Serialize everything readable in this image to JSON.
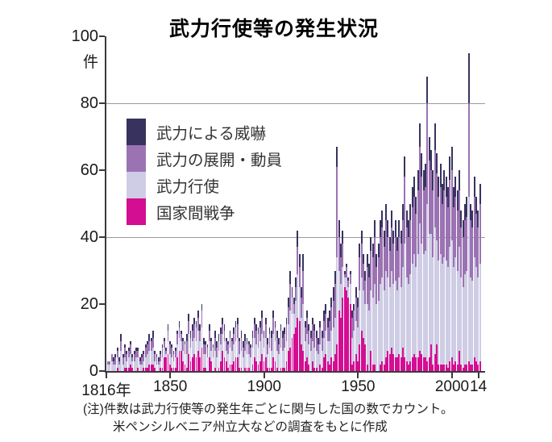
{
  "title": "武力行使等の発生状況",
  "y_axis": {
    "unit_label": "件",
    "tick_values": [
      100,
      80,
      60,
      40,
      20,
      0
    ],
    "tick_labels": [
      "100",
      "80",
      "60",
      "40",
      "20",
      "0"
    ]
  },
  "x_axis": {
    "ticks": [
      {
        "year": 1816,
        "label": "1816年"
      },
      {
        "year": 1850,
        "label": "1850"
      },
      {
        "year": 1900,
        "label": "1900"
      },
      {
        "year": 1950,
        "label": "1950"
      },
      {
        "year": 2000,
        "label": "2000"
      },
      {
        "year": 2014,
        "label": "14"
      }
    ]
  },
  "note": {
    "line1": "(注)件数は武力行使等の発生年ごとに関与した国の数でカウント。",
    "line2": "米ペンシルベニア州立大などの調査をもとに作成"
  },
  "colors": {
    "threat_navy": "#37335e",
    "deploy_purple": "#9b73b3",
    "force_lavender": "#cfcde5",
    "war_magenta": "#d30e92",
    "gridline": "#9b9b9b",
    "axis": "#3a3a3a"
  },
  "chart_data": {
    "type": "bar",
    "stacked": true,
    "title": "武力行使等の発生状況",
    "ylabel": "件",
    "ylim": [
      0,
      100
    ],
    "x_start": 1816,
    "x_end": 2014,
    "gridlines_y": [
      40,
      80
    ],
    "grid": "horizontal lines at 40 and 80 only",
    "legend_position": "upper-left",
    "legend_order_top_to_bottom": [
      "武力による威嚇",
      "武力の展開・動員",
      "武力行使",
      "国家間戦争"
    ],
    "series": [
      {
        "name": "国家間戦争",
        "color": "#d30e92",
        "values": [
          0,
          0,
          0,
          0,
          0,
          1,
          0,
          0,
          0,
          1,
          1,
          1,
          2,
          1,
          0,
          0,
          1,
          0,
          0,
          1,
          1,
          1,
          2,
          2,
          2,
          1,
          0,
          0,
          1,
          1,
          4,
          4,
          5,
          2,
          1,
          1,
          1,
          4,
          6,
          6,
          3,
          2,
          1,
          5,
          3,
          4,
          5,
          4,
          6,
          4,
          7,
          1,
          1,
          0,
          4,
          3,
          0,
          1,
          0,
          1,
          3,
          6,
          4,
          3,
          1,
          2,
          2,
          3,
          4,
          4,
          1,
          1,
          0,
          1,
          1,
          1,
          0,
          2,
          4,
          3,
          2,
          3,
          5,
          3,
          4,
          1,
          1,
          1,
          4,
          3,
          1,
          0,
          1,
          1,
          1,
          3,
          6,
          7,
          10,
          11,
          13,
          16,
          15,
          8,
          6,
          3,
          4,
          2,
          0,
          3,
          1,
          1,
          0,
          2,
          1,
          4,
          5,
          3,
          2,
          4,
          3,
          5,
          8,
          18,
          16,
          22,
          25,
          24,
          22,
          20,
          2,
          3,
          5,
          3,
          8,
          12,
          10,
          8,
          2,
          0,
          6,
          2,
          2,
          0,
          0,
          2,
          3,
          2,
          4,
          6,
          5,
          7,
          5,
          4,
          4,
          5,
          4,
          7,
          4,
          3,
          2,
          3,
          4,
          5,
          4,
          4,
          6,
          5,
          4,
          4,
          3,
          4,
          8,
          2,
          5,
          8,
          2,
          2,
          2,
          2,
          2,
          1,
          3,
          4,
          2,
          3,
          2,
          6,
          2,
          1,
          2,
          2,
          3,
          2,
          2,
          4,
          3,
          2,
          3
        ]
      },
      {
        "name": "武力行使",
        "color": "#cfcde5",
        "values": [
          2,
          2,
          3,
          2,
          2,
          3,
          2,
          6,
          2,
          3,
          2,
          3,
          3,
          2,
          3,
          4,
          3,
          2,
          2,
          2,
          3,
          4,
          4,
          4,
          5,
          2,
          2,
          2,
          2,
          3,
          3,
          1,
          4,
          3,
          3,
          2,
          3,
          4,
          4,
          3,
          3,
          3,
          4,
          6,
          4,
          5,
          5,
          5,
          6,
          5,
          6,
          4,
          4,
          4,
          5,
          3,
          4,
          5,
          4,
          5,
          5,
          5,
          5,
          3,
          4,
          5,
          4,
          5,
          5,
          6,
          4,
          5,
          4,
          5,
          4,
          4,
          4,
          5,
          6,
          5,
          5,
          6,
          6,
          4,
          6,
          4,
          6,
          5,
          7,
          6,
          5,
          5,
          6,
          5,
          6,
          6,
          8,
          11,
          7,
          6,
          8,
          13,
          10,
          8,
          14,
          6,
          7,
          6,
          6,
          6,
          6,
          5,
          5,
          6,
          5,
          6,
          7,
          6,
          7,
          8,
          10,
          11,
          26,
          12,
          10,
          9,
          3,
          4,
          3,
          6,
          8,
          9,
          10,
          10,
          16,
          16,
          14,
          12,
          18,
          18,
          18,
          20,
          24,
          20,
          21,
          24,
          25,
          22,
          26,
          22,
          20,
          23,
          21,
          23,
          20,
          23,
          21,
          24,
          34,
          25,
          24,
          26,
          28,
          30,
          27,
          31,
          38,
          33,
          31,
          32,
          47,
          37,
          33,
          32,
          38,
          31,
          31,
          33,
          30,
          32,
          31,
          30,
          34,
          35,
          29,
          31,
          28,
          31,
          26,
          24,
          27,
          28,
          49,
          26,
          25,
          30,
          28,
          26,
          29
        ]
      },
      {
        "name": "武力の展開・動員",
        "color": "#9b73b3",
        "values": [
          1,
          1,
          2,
          1,
          2,
          2,
          1,
          3,
          2,
          3,
          2,
          2,
          3,
          1,
          2,
          2,
          2,
          1,
          2,
          2,
          3,
          3,
          3,
          3,
          3,
          2,
          2,
          1,
          2,
          3,
          2,
          1,
          3,
          3,
          3,
          2,
          2,
          3,
          3,
          2,
          3,
          3,
          4,
          4,
          3,
          3,
          4,
          4,
          4,
          3,
          5,
          3,
          3,
          3,
          3,
          3,
          3,
          4,
          3,
          3,
          3,
          3,
          3,
          3,
          3,
          3,
          3,
          3,
          4,
          4,
          4,
          4,
          3,
          3,
          3,
          3,
          3,
          3,
          4,
          4,
          4,
          4,
          5,
          3,
          4,
          3,
          4,
          4,
          5,
          4,
          4,
          3,
          5,
          4,
          4,
          5,
          5,
          8,
          5,
          3,
          4,
          8,
          6,
          6,
          10,
          4,
          5,
          4,
          4,
          5,
          5,
          4,
          3,
          5,
          4,
          5,
          5,
          4,
          6,
          7,
          8,
          10,
          27,
          10,
          8,
          7,
          1,
          3,
          2,
          3,
          6,
          6,
          7,
          6,
          10,
          10,
          8,
          7,
          11,
          10,
          12,
          12,
          14,
          11,
          13,
          14,
          15,
          13,
          15,
          12,
          11,
          13,
          12,
          13,
          12,
          12,
          13,
          14,
          20,
          15,
          14,
          16,
          17,
          17,
          16,
          19,
          23,
          20,
          19,
          19,
          30,
          22,
          19,
          20,
          23,
          20,
          19,
          20,
          18,
          20,
          19,
          18,
          20,
          21,
          18,
          18,
          18,
          17,
          15,
          15,
          16,
          16,
          28,
          17,
          16,
          18,
          16,
          15,
          18
        ]
      },
      {
        "name": "武力による威嚇",
        "color": "#37335e",
        "values": [
          0,
          0,
          0,
          1,
          1,
          1,
          1,
          2,
          1,
          1,
          1,
          1,
          1,
          1,
          1,
          1,
          1,
          1,
          1,
          1,
          1,
          1,
          2,
          1,
          2,
          1,
          1,
          1,
          1,
          1,
          1,
          1,
          2,
          1,
          1,
          1,
          1,
          1,
          2,
          1,
          1,
          1,
          2,
          2,
          2,
          2,
          2,
          2,
          2,
          2,
          2,
          2,
          1,
          1,
          2,
          1,
          1,
          2,
          2,
          2,
          2,
          2,
          2,
          1,
          1,
          2,
          1,
          2,
          2,
          2,
          1,
          2,
          2,
          2,
          2,
          1,
          1,
          2,
          2,
          2,
          2,
          2,
          2,
          2,
          2,
          2,
          2,
          2,
          2,
          2,
          2,
          2,
          2,
          2,
          2,
          2,
          3,
          4,
          3,
          2,
          3,
          5,
          4,
          3,
          5,
          2,
          2,
          2,
          2,
          2,
          2,
          2,
          2,
          2,
          2,
          3,
          3,
          3,
          3,
          3,
          4,
          4,
          6,
          5,
          4,
          4,
          1,
          1,
          1,
          1,
          2,
          2,
          3,
          3,
          4,
          4,
          3,
          3,
          4,
          4,
          4,
          4,
          5,
          4,
          4,
          5,
          5,
          5,
          5,
          5,
          4,
          5,
          4,
          5,
          4,
          5,
          4,
          5,
          6,
          5,
          5,
          5,
          6,
          6,
          5,
          6,
          7,
          7,
          6,
          7,
          8,
          7,
          6,
          6,
          8,
          6,
          6,
          7,
          6,
          6,
          6,
          6,
          7,
          7,
          6,
          6,
          6,
          6,
          5,
          5,
          5,
          6,
          15,
          5,
          5,
          6,
          5,
          5,
          6
        ]
      }
    ]
  }
}
